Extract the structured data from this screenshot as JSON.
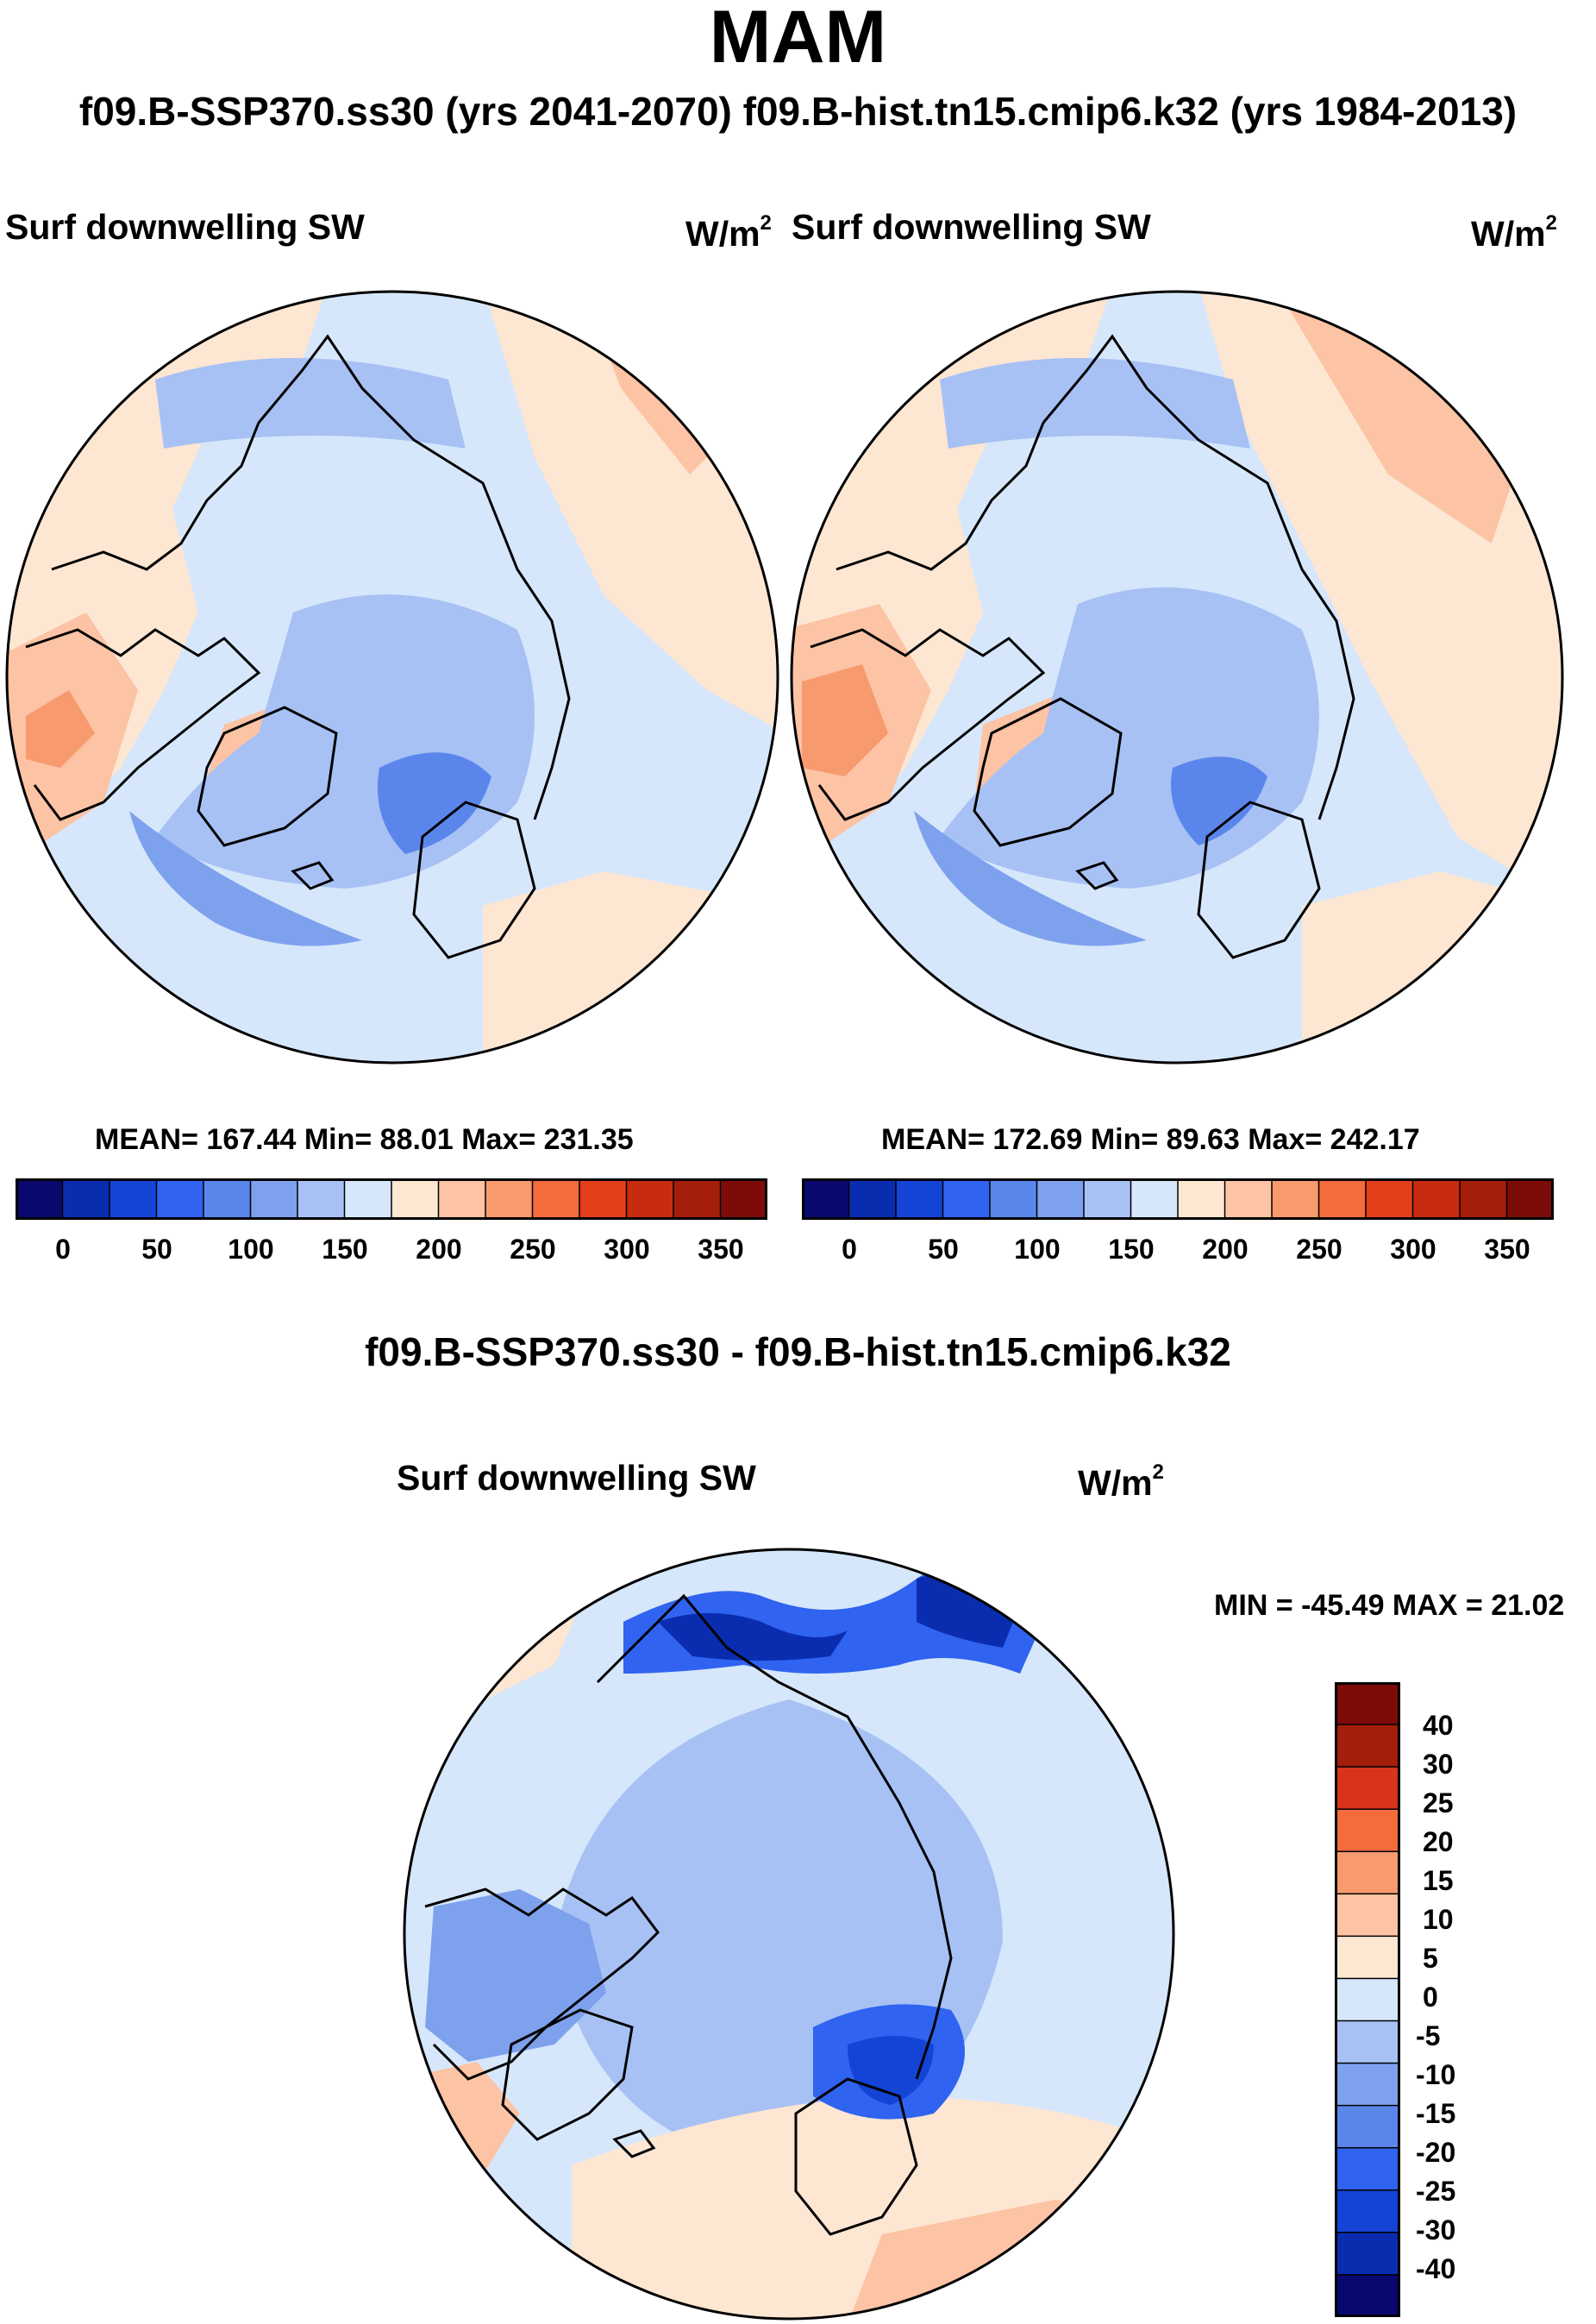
{
  "title": "MAM",
  "subtitle": "f09.B-SSP370.ss30 (yrs 2041-2070)  f09.B-hist.tn15.cmip6.k32 (yrs 1984-2013)",
  "panels": [
    {
      "label": "Surf downwelling SW",
      "units": "W/m",
      "units_sup": "2",
      "stats": "MEAN= 167.44  Min=  88.01  Max= 231.35"
    },
    {
      "label": "Surf downwelling SW",
      "units": "W/m",
      "units_sup": "2",
      "stats": "MEAN= 172.69  Min=  89.63  Max= 242.17"
    }
  ],
  "abs_colorbar": {
    "colors": [
      "#08086e",
      "#0a2db0",
      "#1344d6",
      "#2f63f0",
      "#5a86ec",
      "#7ea1ee",
      "#a7c1f5",
      "#d6e7fb",
      "#fde6d2",
      "#fcc3a4",
      "#f79a6d",
      "#f46b3c",
      "#e3401a",
      "#c82c0e",
      "#a51d0b",
      "#7d0b08"
    ],
    "ticks": [
      "0",
      "50",
      "100",
      "150",
      "200",
      "250",
      "300",
      "350"
    ]
  },
  "diff": {
    "title": "f09.B-SSP370.ss30 - f09.B-hist.tn15.cmip6.k32",
    "label": "Surf downwelling SW",
    "units": "W/m",
    "units_sup": "2",
    "minmax": "MIN = -45.49 MAX =  21.02"
  },
  "diff_colorbar": {
    "colors": [
      "#7d0b08",
      "#a51d0b",
      "#d8341a",
      "#f46b3c",
      "#f79a6d",
      "#fcc3a4",
      "#fde6d2",
      "#d6e7fb",
      "#a7c1f5",
      "#7ea1ee",
      "#5a86ec",
      "#2f63f0",
      "#1344d6",
      "#0a2db0",
      "#08086e"
    ],
    "ticks": [
      "40",
      "30",
      "25",
      "20",
      "15",
      "10",
      "5",
      "0",
      "-5",
      "-10",
      "-15",
      "-20",
      "-25",
      "-30",
      "-40"
    ]
  },
  "palette": {
    "land_outline": "#000000",
    "neutral_blue": "#d6e7fb",
    "neutral_red": "#fde6d2"
  }
}
